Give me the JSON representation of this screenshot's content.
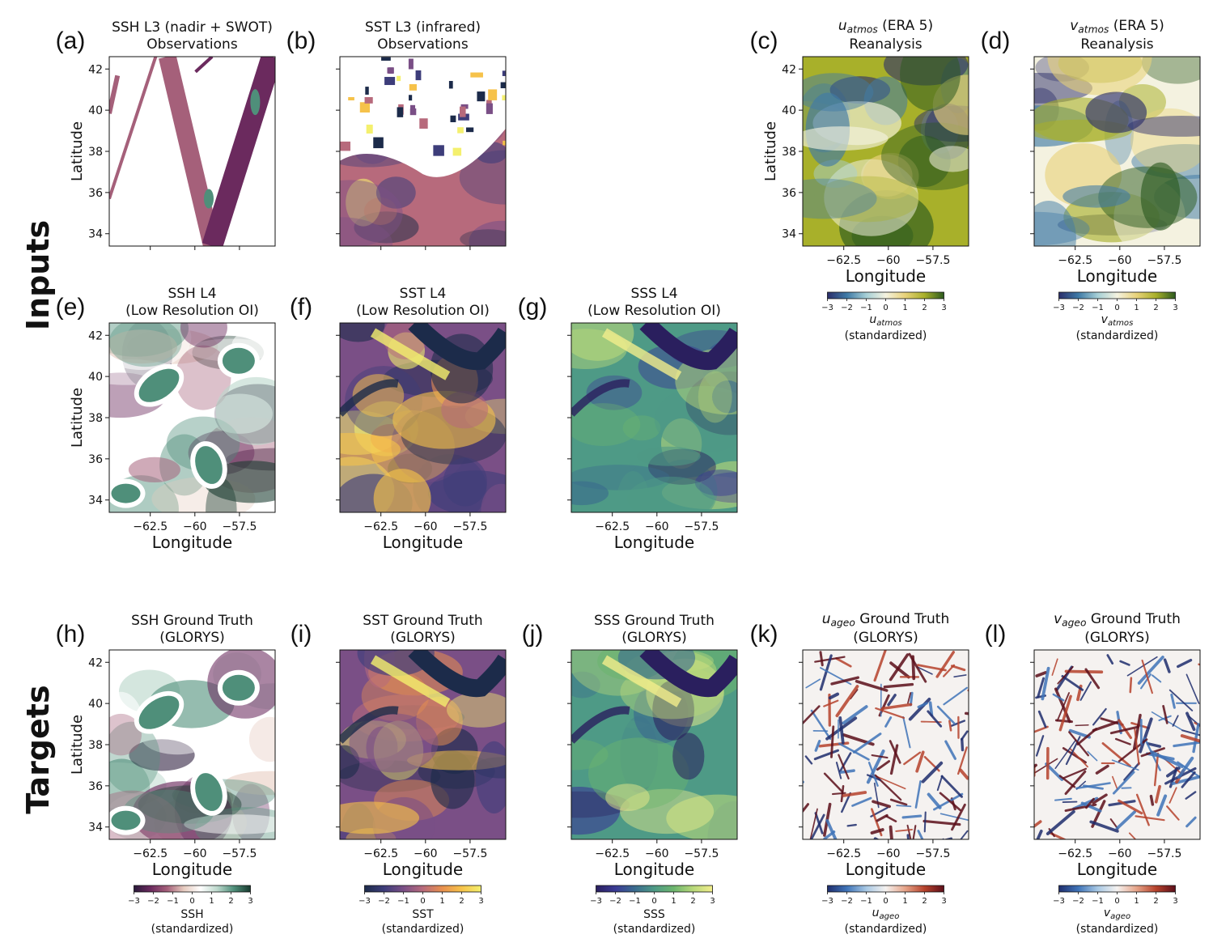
{
  "row_labels": {
    "inputs": "Inputs",
    "targets": "Targets"
  },
  "axis_text": {
    "xlabel": "Longitude",
    "ylabel": "Latitude",
    "standardized": "(standardized)"
  },
  "colormaps": {
    "ssh": [
      "#2a1a3a",
      "#6b2a5e",
      "#a5607a",
      "#e6cbbf",
      "#ffffff",
      "#bcd8cc",
      "#4f8f7a",
      "#183a2e"
    ],
    "sst": [
      "#1c2b4a",
      "#3d3d7a",
      "#7a4f86",
      "#b76a7c",
      "#e8904f",
      "#f6c24a",
      "#f4f06e"
    ],
    "sss": [
      "#2a1f5e",
      "#3a3a94",
      "#3a6b8e",
      "#4e9a86",
      "#6cb56e",
      "#b8d87a",
      "#f2ee8c"
    ],
    "atmos": [
      "#2b2e6a",
      "#3f7aa6",
      "#a6cfd6",
      "#f4f2e0",
      "#e8d27a",
      "#a8b02a",
      "#2c5a1f"
    ],
    "ageo": [
      "#1f2d6d",
      "#3f74b8",
      "#a8c8e4",
      "#f5f2f0",
      "#e6a489",
      "#b6422c",
      "#5c0f1a"
    ]
  },
  "chart_data": [
    {
      "panel": "(a)",
      "title": "SSH L3 (nadir + SWOT)",
      "subtitle": "Observations",
      "type": "heatmap",
      "variable": "SSH",
      "colormap": "ssh",
      "ylim": [
        33.5,
        42.6
      ],
      "xlim": [
        -64.8,
        -55.4
      ],
      "yticks": [
        34,
        36,
        38,
        40,
        42
      ],
      "xticks": [
        -62.5,
        -60.0,
        -57.5
      ],
      "show_ylabel": true,
      "show_xlabel": false,
      "show_xticklabels": false
    },
    {
      "panel": "(b)",
      "title": "SST L3 (infrared)",
      "subtitle": "Observations",
      "type": "heatmap",
      "variable": "SST",
      "colormap": "sst",
      "xticks": [
        -62.5,
        -60.0,
        -57.5
      ],
      "yticks": [
        34,
        36,
        38,
        40,
        42
      ],
      "show_ylabel": false,
      "show_xlabel": false,
      "show_xticklabels": false,
      "show_yticklabels": false
    },
    {
      "panel": "(c)",
      "title_var": "u",
      "title_sub": "atmos",
      "title_rest": " (ERA 5)",
      "subtitle": "Reanalysis",
      "type": "heatmap",
      "variable": "u_atmos",
      "colormap": "atmos",
      "ylim": [
        33.5,
        42.6
      ],
      "yticks": [
        34,
        36,
        38,
        40,
        42
      ],
      "xticks": [
        -62.5,
        -60.0,
        -57.5
      ],
      "show_ylabel": true,
      "show_xlabel": true,
      "show_xticklabels": true,
      "colorbar": {
        "ticks": [
          -3,
          -2,
          -1,
          0,
          1,
          2,
          3
        ],
        "label_var": "u",
        "label_sub": "atmos"
      }
    },
    {
      "panel": "(d)",
      "title_var": "v",
      "title_sub": "atmos",
      "title_rest": " (ERA 5)",
      "subtitle": "Reanalysis",
      "type": "heatmap",
      "variable": "v_atmos",
      "colormap": "atmos",
      "xticks": [
        -62.5,
        -60.0,
        -57.5
      ],
      "yticks": [
        34,
        36,
        38,
        40,
        42
      ],
      "show_ylabel": false,
      "show_xlabel": true,
      "show_xticklabels": true,
      "show_yticklabels": false,
      "colorbar": {
        "ticks": [
          -3,
          -2,
          -1,
          0,
          1,
          2,
          3
        ],
        "label_var": "v",
        "label_sub": "atmos"
      }
    },
    {
      "panel": "(e)",
      "title": "SSH L4",
      "subtitle": "(Low Resolution OI)",
      "type": "heatmap",
      "variable": "SSH",
      "colormap": "ssh",
      "yticks": [
        34,
        36,
        38,
        40,
        42
      ],
      "xticks": [
        -62.5,
        -60.0,
        -57.5
      ],
      "show_ylabel": true,
      "show_xlabel": true,
      "show_xticklabels": true
    },
    {
      "panel": "(f)",
      "title": "SST L4",
      "subtitle": "(Low Resolution OI)",
      "type": "heatmap",
      "variable": "SST",
      "colormap": "sst",
      "xticks": [
        -62.5,
        -60.0,
        -57.5
      ],
      "yticks": [
        34,
        36,
        38,
        40,
        42
      ],
      "show_ylabel": false,
      "show_xlabel": true,
      "show_xticklabels": true,
      "show_yticklabels": false
    },
    {
      "panel": "(g)",
      "title": "SSS L4",
      "subtitle": "(Low Resolution OI)",
      "type": "heatmap",
      "variable": "SSS",
      "colormap": "sss",
      "xticks": [
        -62.5,
        -60.0,
        -57.5
      ],
      "yticks": [
        34,
        36,
        38,
        40,
        42
      ],
      "show_ylabel": false,
      "show_xlabel": true,
      "show_xticklabels": true,
      "show_yticklabels": false
    },
    {
      "panel": "(h)",
      "title": "SSH Ground Truth",
      "subtitle": "(GLORYS)",
      "type": "heatmap",
      "variable": "SSH",
      "colormap": "ssh",
      "yticks": [
        34,
        36,
        38,
        40,
        42
      ],
      "xticks": [
        -62.5,
        -60.0,
        -57.5
      ],
      "show_ylabel": true,
      "show_xlabel": true,
      "show_xticklabels": true,
      "colorbar": {
        "ticks": [
          -3,
          -2,
          -1,
          0,
          1,
          2,
          3
        ],
        "label": "SSH"
      }
    },
    {
      "panel": "(i)",
      "title": "SST Ground Truth",
      "subtitle": "(GLORYS)",
      "type": "heatmap",
      "variable": "SST",
      "colormap": "sst",
      "xticks": [
        -62.5,
        -60.0,
        -57.5
      ],
      "yticks": [
        34,
        36,
        38,
        40,
        42
      ],
      "show_ylabel": false,
      "show_xlabel": true,
      "show_xticklabels": true,
      "show_yticklabels": false,
      "colorbar": {
        "ticks": [
          -3,
          -2,
          -1,
          0,
          1,
          2,
          3
        ],
        "label": "SST"
      }
    },
    {
      "panel": "(j)",
      "title": "SSS Ground Truth",
      "subtitle": "(GLORYS)",
      "type": "heatmap",
      "variable": "SSS",
      "colormap": "sss",
      "xticks": [
        -62.5,
        -60.0,
        -57.5
      ],
      "yticks": [
        34,
        36,
        38,
        40,
        42
      ],
      "show_ylabel": false,
      "show_xlabel": true,
      "show_xticklabels": true,
      "show_yticklabels": false,
      "colorbar": {
        "ticks": [
          -3,
          -2,
          -1,
          0,
          1,
          2,
          3
        ],
        "label": "SSS"
      }
    },
    {
      "panel": "(k)",
      "title_var": "u",
      "title_sub": "ageo",
      "title_rest": " Ground Truth",
      "subtitle": "(GLORYS)",
      "type": "heatmap",
      "variable": "u_ageo",
      "colormap": "ageo",
      "xticks": [
        -62.5,
        -60.0,
        -57.5
      ],
      "yticks": [
        34,
        36,
        38,
        40,
        42
      ],
      "show_ylabel": false,
      "show_xlabel": true,
      "show_xticklabels": true,
      "show_yticklabels": false,
      "colorbar": {
        "ticks": [
          -3,
          -2,
          -1,
          0,
          1,
          2,
          3
        ],
        "label_var": "u",
        "label_sub": "ageo"
      }
    },
    {
      "panel": "(l)",
      "title_var": "v",
      "title_sub": "ageo",
      "title_rest": " Ground Truth",
      "subtitle": "(GLORYS)",
      "type": "heatmap",
      "variable": "v_ageo",
      "colormap": "ageo",
      "xticks": [
        -62.5,
        -60.0,
        -57.5
      ],
      "yticks": [
        34,
        36,
        38,
        40,
        42
      ],
      "show_ylabel": false,
      "show_xlabel": true,
      "show_xticklabels": true,
      "show_yticklabels": false,
      "colorbar": {
        "ticks": [
          -3,
          -2,
          -1,
          0,
          1,
          2,
          3
        ],
        "label_var": "v",
        "label_sub": "ageo"
      }
    }
  ]
}
